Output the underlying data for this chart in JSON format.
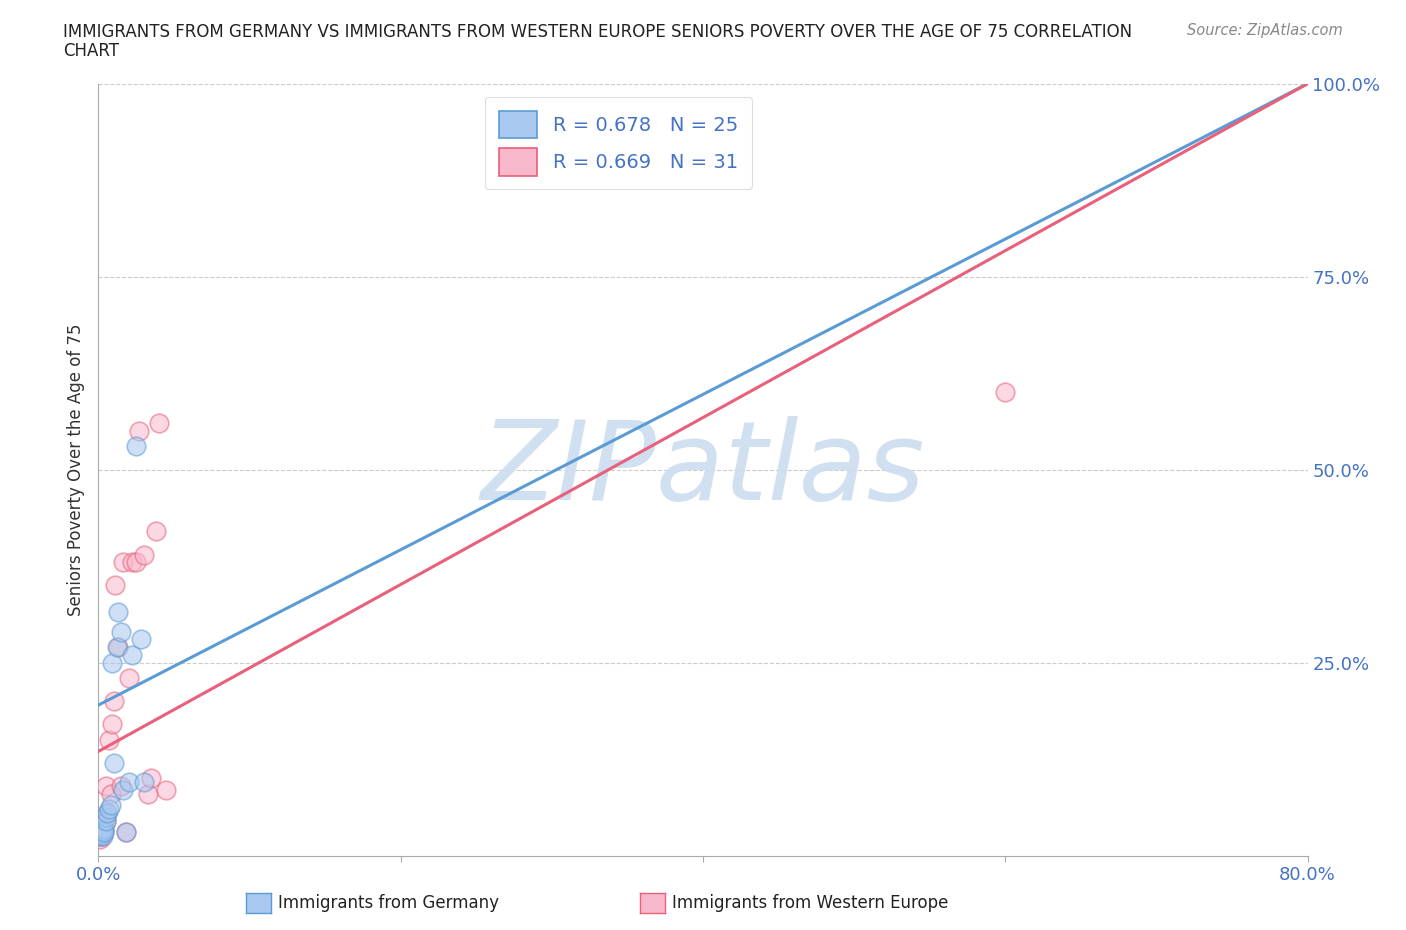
{
  "title_line1": "IMMIGRANTS FROM GERMANY VS IMMIGRANTS FROM WESTERN EUROPE SENIORS POVERTY OVER THE AGE OF 75 CORRELATION",
  "title_line2": "CHART",
  "source": "Source: ZipAtlas.com",
  "ylabel": "Seniors Poverty Over the Age of 75",
  "xlim": [
    0,
    0.8
  ],
  "ylim": [
    0,
    1.0
  ],
  "yticks_right": [
    0.25,
    0.5,
    0.75,
    1.0
  ],
  "ytick_labels_right": [
    "25.0%",
    "50.0%",
    "75.0%",
    "100.0%"
  ],
  "watermark": "ZIPatlas",
  "watermark_color": "#ccddf0",
  "background_color": "#ffffff",
  "grid_color": "#cccccc",
  "blue_scatter_color": "#a8c8f0",
  "pink_scatter_color": "#f8b8cc",
  "blue_edge_color": "#5b9bd5",
  "pink_edge_color": "#e8607a",
  "blue_line_color": "#5b9bd5",
  "pink_line_color": "#e8607a",
  "tick_label_color": "#4472c4",
  "legend_text_color": "#4472c4",
  "germany_R": 0.678,
  "germany_N": 25,
  "westerneurope_R": 0.669,
  "westerneurope_N": 31,
  "germany_x": [
    0.001,
    0.001,
    0.002,
    0.002,
    0.003,
    0.003,
    0.004,
    0.004,
    0.005,
    0.005,
    0.006,
    0.007,
    0.008,
    0.009,
    0.01,
    0.012,
    0.013,
    0.015,
    0.016,
    0.018,
    0.02,
    0.022,
    0.025,
    0.028,
    0.03
  ],
  "germany_y": [
    0.03,
    0.025,
    0.03,
    0.028,
    0.032,
    0.025,
    0.035,
    0.03,
    0.05,
    0.045,
    0.055,
    0.06,
    0.065,
    0.25,
    0.12,
    0.27,
    0.315,
    0.29,
    0.085,
    0.03,
    0.095,
    0.26,
    0.53,
    0.28,
    0.095
  ],
  "westerneurope_x": [
    0.001,
    0.001,
    0.002,
    0.002,
    0.003,
    0.003,
    0.004,
    0.004,
    0.005,
    0.005,
    0.006,
    0.007,
    0.008,
    0.009,
    0.01,
    0.011,
    0.013,
    0.015,
    0.016,
    0.018,
    0.02,
    0.022,
    0.025,
    0.027,
    0.03,
    0.033,
    0.035,
    0.038,
    0.04,
    0.045,
    0.6
  ],
  "westerneurope_y": [
    0.025,
    0.022,
    0.028,
    0.025,
    0.03,
    0.028,
    0.035,
    0.03,
    0.045,
    0.09,
    0.055,
    0.15,
    0.08,
    0.17,
    0.2,
    0.35,
    0.27,
    0.09,
    0.38,
    0.03,
    0.23,
    0.38,
    0.38,
    0.55,
    0.39,
    0.08,
    0.1,
    0.42,
    0.56,
    0.085,
    0.6
  ],
  "blue_line_x0": 0.0,
  "blue_line_y0": 0.195,
  "blue_line_x1": 0.8,
  "blue_line_y1": 1.0,
  "pink_line_x0": 0.0,
  "pink_line_y0": 0.135,
  "pink_line_x1": 0.8,
  "pink_line_y1": 1.0,
  "dot_size": 180,
  "dot_alpha": 0.55,
  "line_width": 2.2
}
